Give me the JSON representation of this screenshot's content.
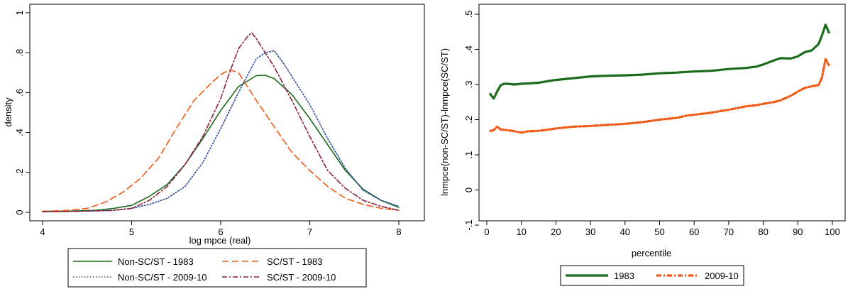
{
  "chart_data": [
    {
      "type": "line",
      "xlabel": "log mpce (real)",
      "ylabel": "density",
      "xlim": [
        4,
        8
      ],
      "ylim": [
        0,
        1
      ],
      "x_ticks": [
        "4",
        "5",
        "6",
        "7",
        "8"
      ],
      "y_ticks": [
        "0",
        ".2",
        ".4",
        ".6",
        ".8",
        "1"
      ],
      "grid": false,
      "legend_position": "bottom",
      "series": [
        {
          "name": "Non-SC/ST - 1983",
          "color": "#1a6b1a",
          "style": "solid",
          "x": [
            4.0,
            4.3,
            4.6,
            4.8,
            5.0,
            5.2,
            5.4,
            5.6,
            5.8,
            6.0,
            6.2,
            6.4,
            6.5,
            6.6,
            6.8,
            7.0,
            7.2,
            7.4,
            7.6,
            7.8,
            8.0
          ],
          "y": [
            0.005,
            0.006,
            0.01,
            0.02,
            0.035,
            0.08,
            0.14,
            0.24,
            0.37,
            0.51,
            0.63,
            0.685,
            0.687,
            0.67,
            0.59,
            0.47,
            0.34,
            0.21,
            0.115,
            0.06,
            0.025
          ]
        },
        {
          "name": "SC/ST - 1983",
          "color": "#f05a14",
          "style": "dashed",
          "x": [
            4.0,
            4.3,
            4.5,
            4.7,
            4.9,
            5.1,
            5.3,
            5.5,
            5.7,
            5.9,
            6.0,
            6.1,
            6.2,
            6.4,
            6.6,
            6.8,
            7.0,
            7.2,
            7.4,
            7.6,
            7.8,
            8.0
          ],
          "y": [
            0.005,
            0.01,
            0.02,
            0.05,
            0.1,
            0.17,
            0.27,
            0.42,
            0.56,
            0.65,
            0.69,
            0.715,
            0.7,
            0.56,
            0.43,
            0.3,
            0.21,
            0.13,
            0.07,
            0.04,
            0.02,
            0.01
          ]
        },
        {
          "name": "Non-SC/ST - 2009-10",
          "color": "#2a4a9a",
          "style": "dotted",
          "x": [
            4.0,
            4.4,
            4.8,
            5.0,
            5.2,
            5.4,
            5.6,
            5.8,
            6.0,
            6.2,
            6.4,
            6.5,
            6.6,
            6.7,
            6.8,
            7.0,
            7.2,
            7.4,
            7.6,
            7.8,
            8.0
          ],
          "y": [
            0.003,
            0.005,
            0.01,
            0.02,
            0.04,
            0.07,
            0.13,
            0.25,
            0.42,
            0.6,
            0.77,
            0.8,
            0.81,
            0.75,
            0.68,
            0.54,
            0.37,
            0.22,
            0.11,
            0.06,
            0.03
          ]
        },
        {
          "name": "SC/ST - 2009-10",
          "color": "#8c1f3c",
          "style": "dashdot",
          "x": [
            4.0,
            4.4,
            4.8,
            5.0,
            5.2,
            5.4,
            5.6,
            5.8,
            6.0,
            6.1,
            6.2,
            6.3,
            6.35,
            6.4,
            6.5,
            6.6,
            6.8,
            7.0,
            7.2,
            7.4,
            7.6,
            7.8,
            8.0
          ],
          "y": [
            0.003,
            0.005,
            0.01,
            0.02,
            0.06,
            0.13,
            0.24,
            0.38,
            0.57,
            0.7,
            0.82,
            0.88,
            0.9,
            0.87,
            0.8,
            0.73,
            0.56,
            0.38,
            0.21,
            0.12,
            0.06,
            0.03,
            0.01
          ]
        }
      ]
    },
    {
      "type": "line",
      "xlabel": "percentile",
      "ylabel": "lnmpce(non-SC/ST)-lnmpce(SC/ST)",
      "xlim": [
        0,
        100
      ],
      "ylim": [
        -0.1,
        0.5
      ],
      "x_ticks": [
        "0",
        "10",
        "20",
        "30",
        "40",
        "50",
        "60",
        "70",
        "80",
        "90",
        "100"
      ],
      "y_ticks": [
        "-.1",
        "0",
        ".1",
        ".2",
        ".3",
        ".4",
        ".5"
      ],
      "grid": false,
      "legend_position": "bottom",
      "series": [
        {
          "name": "1983",
          "color": "#1a6b1a",
          "style": "solid",
          "x": [
            1,
            2,
            3,
            4,
            5,
            6,
            8,
            10,
            12,
            15,
            18,
            20,
            25,
            30,
            35,
            40,
            45,
            50,
            55,
            58,
            60,
            65,
            70,
            75,
            78,
            80,
            83,
            85,
            88,
            90,
            92,
            94,
            96,
            97,
            98,
            99
          ],
          "y": [
            0.273,
            0.26,
            0.28,
            0.298,
            0.302,
            0.302,
            0.3,
            0.302,
            0.303,
            0.305,
            0.31,
            0.313,
            0.318,
            0.323,
            0.325,
            0.326,
            0.328,
            0.332,
            0.334,
            0.336,
            0.337,
            0.339,
            0.344,
            0.347,
            0.351,
            0.357,
            0.368,
            0.375,
            0.374,
            0.38,
            0.392,
            0.397,
            0.415,
            0.44,
            0.47,
            0.448
          ]
        },
        {
          "name": "2009-10",
          "color": "#f05a14",
          "style": "dashdot",
          "x": [
            1,
            2,
            3,
            4,
            6,
            8,
            10,
            12,
            15,
            18,
            20,
            25,
            30,
            35,
            40,
            45,
            50,
            55,
            58,
            60,
            65,
            70,
            75,
            78,
            80,
            83,
            85,
            88,
            90,
            92,
            94,
            96,
            97,
            98,
            99
          ],
          "y": [
            0.168,
            0.17,
            0.18,
            0.172,
            0.17,
            0.167,
            0.163,
            0.167,
            0.168,
            0.172,
            0.175,
            0.18,
            0.182,
            0.185,
            0.188,
            0.193,
            0.2,
            0.205,
            0.212,
            0.214,
            0.22,
            0.228,
            0.238,
            0.241,
            0.245,
            0.25,
            0.255,
            0.268,
            0.28,
            0.29,
            0.295,
            0.298,
            0.32,
            0.372,
            0.355
          ]
        }
      ]
    }
  ]
}
